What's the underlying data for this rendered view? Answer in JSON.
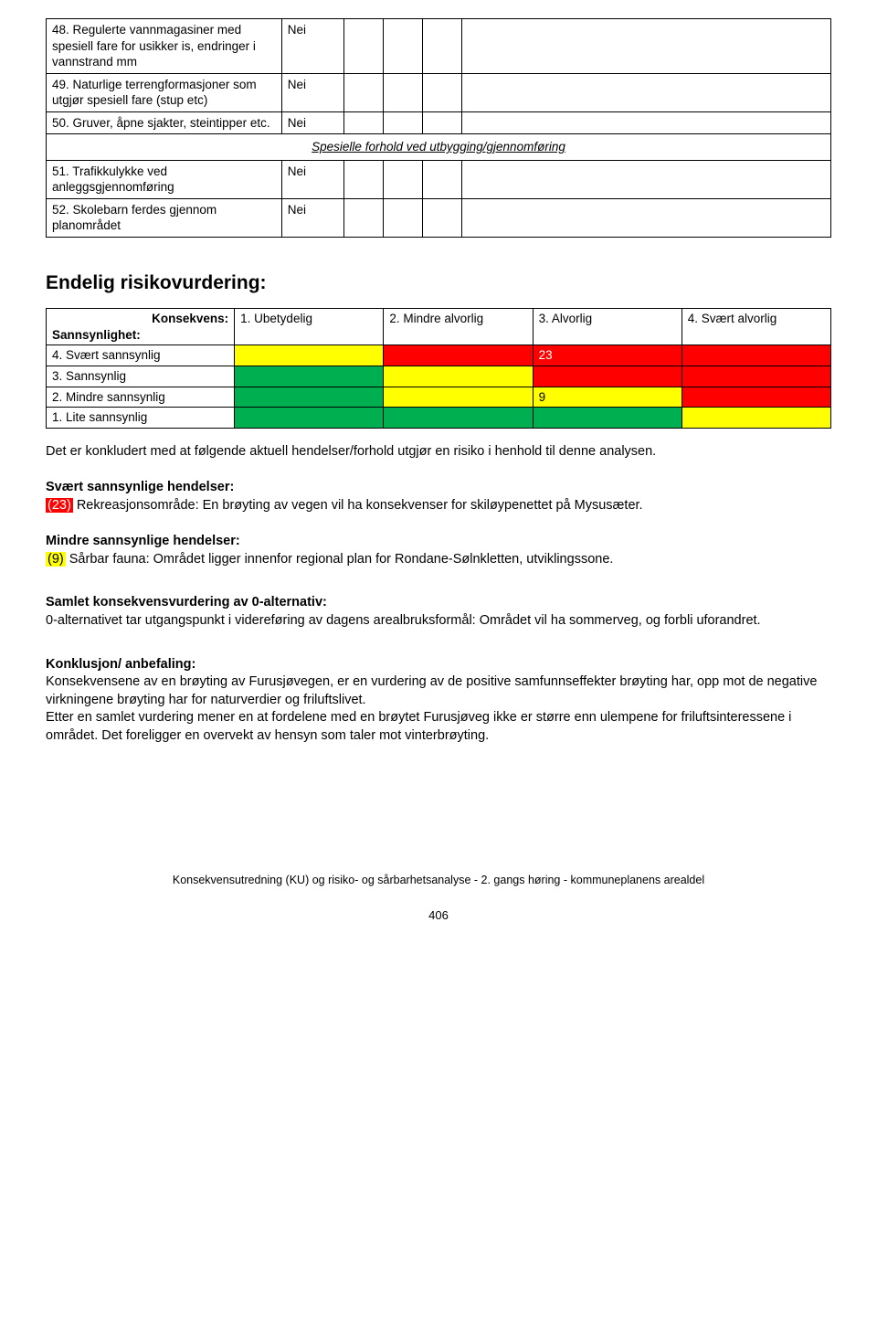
{
  "colors": {
    "red": "#ff0000",
    "yellow": "#ffff00",
    "green": "#00b050",
    "white": "#ffffff",
    "black": "#000000"
  },
  "topTable": {
    "rows": [
      {
        "label": "48. Regulerte vannmagasiner med spesiell fare for usikker is, endringer i vannstrand mm",
        "val": "Nei"
      },
      {
        "label": "49. Naturlige terrengformasjoner som utgjør spesiell fare (stup etc)",
        "val": "Nei"
      },
      {
        "label": "50. Gruver, åpne sjakter, steintipper etc.",
        "val": "Nei"
      }
    ],
    "sectionHeader": "Spesielle forhold ved utbygging/gjennomføring",
    "rows2": [
      {
        "label": "51. Trafikkulykke ved anleggsgjennomføring",
        "val": "Nei"
      },
      {
        "label": "52. Skolebarn ferdes gjennom planområdet",
        "val": "Nei"
      }
    ]
  },
  "heading": "Endelig risikovurdering:",
  "matrix": {
    "cornerTop": "Konsekvens:",
    "cornerBottom": "Sannsynlighet:",
    "cols": [
      "1. Ubetydelig",
      "2. Mindre alvorlig",
      "3. Alvorlig",
      "4. Svært alvorlig"
    ],
    "rows": [
      {
        "label": "4. Svært sannsynlig",
        "cells": [
          {
            "bg": "yellow",
            "text": ""
          },
          {
            "bg": "red",
            "text": ""
          },
          {
            "bg": "red",
            "text": "23"
          },
          {
            "bg": "red",
            "text": ""
          }
        ]
      },
      {
        "label": "3. Sannsynlig",
        "cells": [
          {
            "bg": "green",
            "text": ""
          },
          {
            "bg": "yellow",
            "text": ""
          },
          {
            "bg": "red",
            "text": ""
          },
          {
            "bg": "red",
            "text": ""
          }
        ]
      },
      {
        "label": "2. Mindre sannsynlig",
        "cells": [
          {
            "bg": "green",
            "text": ""
          },
          {
            "bg": "yellow",
            "text": ""
          },
          {
            "bg": "yellow",
            "text": "9"
          },
          {
            "bg": "red",
            "text": ""
          }
        ]
      },
      {
        "label": "1. Lite sannsynlig",
        "cells": [
          {
            "bg": "green",
            "text": ""
          },
          {
            "bg": "green",
            "text": ""
          },
          {
            "bg": "green",
            "text": ""
          },
          {
            "bg": "yellow",
            "text": ""
          }
        ]
      }
    ]
  },
  "body": {
    "intro": "Det er konkludert med at følgende aktuell hendelser/forhold utgjør en risiko i henhold til denne analysen.",
    "svTitle": "Svært sannsynlige hendelser:",
    "tag23": "(23)",
    "svText": " Rekreasjonsområde: En brøyting av vegen vil ha konsekvenser for skiløypenettet på Mysusæter.",
    "msTitle": "Mindre sannsynlige hendelser:",
    "tag9": "(9)",
    "msText": " Sårbar fauna: Området ligger innenfor regional plan for Rondane-Sølnkletten, utviklingssone.",
    "samletTitle": "Samlet konsekvensvurdering av 0-alternativ:",
    "samletText": "0-alternativet tar utgangspunkt i videreføring av dagens arealbruksformål: Området vil ha sommerveg, og forbli uforandret.",
    "konklTitle": "Konklusjon/ anbefaling:",
    "konklText1": "Konsekvensene av en brøyting av Furusjøvegen, er en vurdering av de positive samfunnseffekter brøyting har, opp mot de negative virkningene brøyting har for naturverdier og friluftslivet.",
    "konklText2": "Etter en samlet vurdering mener en at fordelene med en brøytet Furusjøveg ikke er større enn ulempene for friluftsinteressene i området. Det foreligger en overvekt av hensyn som taler mot vinterbrøyting."
  },
  "footer": "Konsekvensutredning (KU) og risiko- og sårbarhetsanalyse - 2. gangs høring - kommuneplanens arealdel",
  "pageNumber": "406"
}
